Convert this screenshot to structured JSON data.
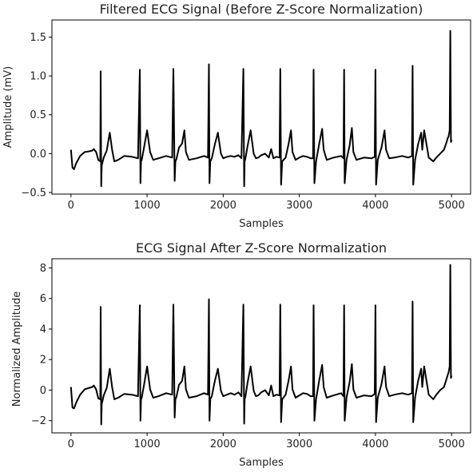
{
  "chart_data": [
    {
      "type": "line",
      "title": "Filtered ECG Signal (Before Z-Score Normalization)",
      "xlabel": "Samples",
      "ylabel": "Amplitude (mV)",
      "xlim": [
        -250,
        5250
      ],
      "ylim": [
        -0.52,
        1.72
      ],
      "xticks": [
        "0",
        "1000",
        "2000",
        "3000",
        "4000",
        "5000"
      ],
      "xtick_values": [
        0,
        1000,
        2000,
        3000,
        4000,
        5000
      ],
      "yticks": [
        "−0.5",
        "0.0",
        "0.5",
        "1.0",
        "1.5"
      ],
      "ytick_values": [
        -0.5,
        0.0,
        0.5,
        1.0,
        1.5
      ],
      "grid": false,
      "series": [
        {
          "color": "#000000",
          "x": [
            0,
            20,
            40,
            70,
            120,
            180,
            240,
            280,
            300,
            330,
            360,
            385,
            390,
            398,
            404,
            412,
            430,
            470,
            510,
            540,
            570,
            620,
            700,
            800,
            880,
            905,
            913,
            920,
            930,
            960,
            1000,
            1040,
            1080,
            1150,
            1250,
            1330,
            1345,
            1362,
            1372,
            1385,
            1420,
            1460,
            1490,
            1510,
            1550,
            1650,
            1750,
            1800,
            1812,
            1820,
            1830,
            1850,
            1890,
            1930,
            1970,
            2000,
            2050,
            2100,
            2150,
            2200,
            2240,
            2265,
            2275,
            2282,
            2292,
            2320,
            2360,
            2400,
            2430,
            2460,
            2500,
            2550,
            2600,
            2630,
            2660,
            2700,
            2740,
            2750,
            2760,
            2775,
            2820,
            2860,
            2890,
            2910,
            2950,
            3000,
            3050,
            3100,
            3150,
            3180,
            3188,
            3198,
            3220,
            3260,
            3300,
            3320,
            3360,
            3450,
            3550,
            3580,
            3588,
            3596,
            3620,
            3660,
            3690,
            3710,
            3750,
            3850,
            3950,
            3990,
            4000,
            4008,
            4030,
            4080,
            4120,
            4140,
            4180,
            4250,
            4350,
            4430,
            4480,
            4488,
            4496,
            4520,
            4560,
            4600,
            4615,
            4640,
            4700,
            4760,
            4800,
            4850,
            4900,
            4935,
            4950,
            4960,
            4975,
            4983,
            4992,
            5000
          ],
          "y": [
            0.05,
            -0.18,
            -0.2,
            -0.12,
            -0.03,
            0.02,
            0.03,
            0.04,
            0.06,
            0.02,
            -0.08,
            -0.1,
            1.06,
            -0.42,
            -0.15,
            -0.12,
            -0.05,
            0.04,
            0.27,
            0.05,
            -0.1,
            -0.08,
            -0.03,
            -0.04,
            -0.06,
            1.08,
            -0.38,
            -0.1,
            -0.08,
            0.08,
            0.3,
            0.02,
            -0.08,
            -0.06,
            -0.03,
            -0.05,
            1.09,
            -0.35,
            -0.1,
            -0.07,
            0.08,
            0.13,
            0.3,
            0.02,
            -0.08,
            -0.06,
            -0.03,
            -0.05,
            1.15,
            -0.38,
            -0.1,
            -0.06,
            0.12,
            0.27,
            0.0,
            -0.06,
            -0.04,
            -0.03,
            -0.04,
            -0.02,
            -0.06,
            1.09,
            -0.42,
            -0.1,
            -0.06,
            0.1,
            0.3,
            0.0,
            -0.06,
            -0.05,
            -0.02,
            0.0,
            -0.05,
            0.06,
            -0.06,
            -0.04,
            -0.05,
            1.09,
            -0.4,
            -0.1,
            -0.05,
            0.13,
            0.3,
            0.02,
            -0.08,
            -0.05,
            -0.03,
            -0.04,
            -0.06,
            -0.06,
            1.08,
            -0.38,
            -0.1,
            0.12,
            0.32,
            0.05,
            -0.08,
            -0.05,
            -0.03,
            -0.06,
            1.08,
            -0.38,
            -0.08,
            0.1,
            0.33,
            0.02,
            -0.08,
            -0.05,
            -0.06,
            -0.04,
            1.08,
            -0.4,
            -0.08,
            0.08,
            0.3,
            0.05,
            -0.06,
            -0.05,
            -0.03,
            -0.05,
            -0.03,
            1.13,
            -0.4,
            -0.08,
            0.12,
            0.27,
            0.05,
            0.3,
            -0.05,
            -0.1,
            -0.05,
            0.0,
            0.05,
            0.15,
            0.2,
            0.22,
            0.3,
            1.58,
            0.15,
            0.18
          ]
        }
      ]
    },
    {
      "type": "line",
      "title": "ECG Signal After Z-Score Normalization",
      "xlabel": "Samples",
      "ylabel": "Normalized Amplitude",
      "xlim": [
        -250,
        5250
      ],
      "ylim": [
        -2.8,
        8.6
      ],
      "xticks": [
        "0",
        "1000",
        "2000",
        "3000",
        "4000",
        "5000"
      ],
      "xtick_values": [
        0,
        1000,
        2000,
        3000,
        4000,
        5000
      ],
      "yticks": [
        "−2",
        "0",
        "2",
        "4",
        "6",
        "8"
      ],
      "ytick_values": [
        -2,
        0,
        2,
        4,
        6,
        8
      ],
      "grid": false,
      "series": [
        {
          "color": "#000000",
          "x": [
            0,
            20,
            40,
            70,
            120,
            180,
            240,
            280,
            300,
            330,
            360,
            385,
            390,
            398,
            404,
            412,
            430,
            470,
            510,
            540,
            570,
            620,
            700,
            800,
            880,
            905,
            913,
            920,
            930,
            960,
            1000,
            1040,
            1080,
            1150,
            1250,
            1330,
            1345,
            1362,
            1372,
            1385,
            1420,
            1460,
            1490,
            1510,
            1550,
            1650,
            1750,
            1800,
            1812,
            1820,
            1830,
            1850,
            1890,
            1930,
            1970,
            2000,
            2050,
            2100,
            2150,
            2200,
            2240,
            2265,
            2275,
            2282,
            2292,
            2320,
            2360,
            2400,
            2430,
            2460,
            2500,
            2550,
            2600,
            2630,
            2660,
            2700,
            2740,
            2750,
            2760,
            2775,
            2820,
            2860,
            2890,
            2910,
            2950,
            3000,
            3050,
            3100,
            3150,
            3180,
            3188,
            3198,
            3220,
            3260,
            3300,
            3320,
            3360,
            3450,
            3550,
            3580,
            3588,
            3596,
            3620,
            3660,
            3690,
            3710,
            3750,
            3850,
            3950,
            3990,
            4000,
            4008,
            4030,
            4080,
            4120,
            4140,
            4180,
            4250,
            4350,
            4430,
            4480,
            4488,
            4496,
            4520,
            4560,
            4600,
            4615,
            4640,
            4700,
            4760,
            4800,
            4850,
            4900,
            4935,
            4950,
            4960,
            4975,
            4983,
            4992,
            5000
          ],
          "y": [
            0.2,
            -1.15,
            -1.2,
            -0.8,
            -0.3,
            0.05,
            0.15,
            0.2,
            0.3,
            0.05,
            -0.55,
            -0.6,
            5.45,
            -2.25,
            -0.9,
            -0.75,
            -0.35,
            0.15,
            1.4,
            0.2,
            -0.6,
            -0.5,
            -0.25,
            -0.3,
            -0.4,
            5.55,
            -2.0,
            -0.6,
            -0.5,
            0.35,
            1.55,
            0.05,
            -0.5,
            -0.4,
            -0.2,
            -0.3,
            5.6,
            -1.8,
            -0.6,
            -0.45,
            0.35,
            0.6,
            1.55,
            0.05,
            -0.5,
            -0.4,
            -0.2,
            -0.3,
            5.95,
            -2.0,
            -0.6,
            -0.4,
            0.6,
            1.4,
            -0.05,
            -0.4,
            -0.3,
            -0.2,
            -0.3,
            -0.15,
            -0.4,
            5.6,
            -2.2,
            -0.6,
            -0.4,
            0.5,
            1.55,
            -0.05,
            -0.4,
            -0.35,
            -0.15,
            0.0,
            -0.35,
            0.3,
            -0.4,
            -0.3,
            -0.35,
            5.6,
            -2.1,
            -0.6,
            -0.3,
            0.65,
            1.55,
            0.05,
            -0.5,
            -0.35,
            -0.2,
            -0.25,
            -0.4,
            -0.4,
            5.55,
            -2.0,
            -0.6,
            0.6,
            1.65,
            0.2,
            -0.5,
            -0.35,
            -0.2,
            -0.4,
            5.55,
            -2.0,
            -0.5,
            0.5,
            1.7,
            0.05,
            -0.5,
            -0.35,
            -0.4,
            -0.25,
            5.55,
            -2.1,
            -0.5,
            0.4,
            1.55,
            0.2,
            -0.4,
            -0.3,
            -0.2,
            -0.3,
            -0.2,
            5.8,
            -2.1,
            -0.5,
            0.6,
            1.4,
            0.2,
            1.55,
            -0.3,
            -0.6,
            -0.3,
            0.0,
            0.2,
            0.75,
            1.0,
            1.15,
            1.55,
            8.2,
            0.8,
            0.95
          ]
        }
      ]
    }
  ]
}
